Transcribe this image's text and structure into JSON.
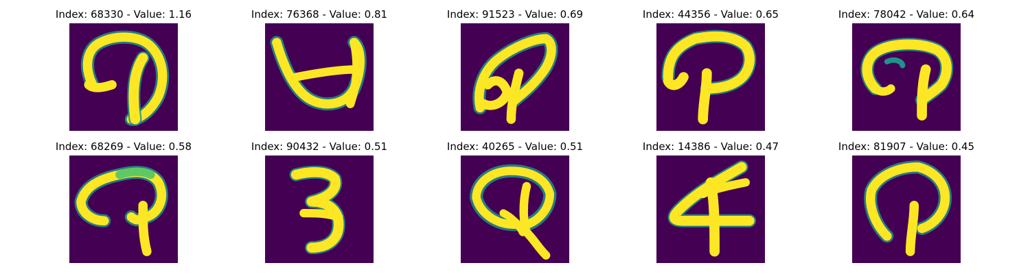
{
  "panels": [
    {
      "index": "68330",
      "value": "1.16",
      "title": "Index: 68330 - Value: 1.16",
      "glyph": "q-loop-left"
    },
    {
      "index": "76368",
      "value": "0.81",
      "title": "Index: 76368 - Value: 0.81",
      "glyph": "inverted-a"
    },
    {
      "index": "91523",
      "value": "0.69",
      "title": "Index: 91523 - Value: 0.69",
      "glyph": "slanted-p"
    },
    {
      "index": "44356",
      "value": "0.65",
      "title": "Index: 44356 - Value: 0.65",
      "glyph": "p-shape"
    },
    {
      "index": "78042",
      "value": "0.64",
      "title": "Index: 78042 - Value: 0.64",
      "glyph": "mushroom"
    },
    {
      "index": "68269",
      "value": "0.58",
      "title": "Index: 68269 - Value: 0.58",
      "glyph": "hook-p"
    },
    {
      "index": "90432",
      "value": "0.51",
      "title": "Index: 90432 - Value: 0.51",
      "glyph": "three"
    },
    {
      "index": "40265",
      "value": "0.51",
      "title": "Index: 40265 - Value: 0.51",
      "glyph": "q-shape"
    },
    {
      "index": "14386",
      "value": "0.47",
      "title": "Index: 14386 - Value: 0.47",
      "glyph": "four"
    },
    {
      "index": "81907",
      "value": "0.45",
      "title": "Index: 81907 - Value: 0.45",
      "glyph": "round-p"
    }
  ],
  "colors": {
    "background": "#440154",
    "stroke": "#fde725",
    "stroke_edge": "#21918c",
    "stroke_mid": "#5ec962"
  }
}
